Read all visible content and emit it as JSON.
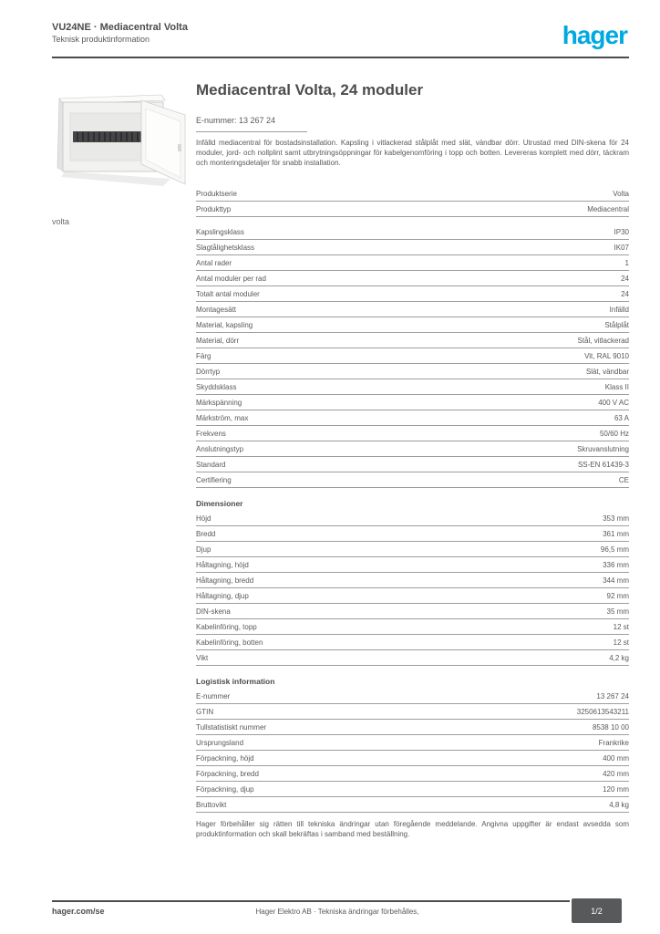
{
  "brand": {
    "logo_text": "hager",
    "logo_color": "#00A9E0"
  },
  "header": {
    "reference_line": "VU24NE · Mediacentral Volta",
    "subtitle_line": "Teknisk produktinformation"
  },
  "product_image": {
    "alt_name": "volta-media-enclosure-open-door-photo"
  },
  "side_label": "volta",
  "title": "Mediacentral Volta, 24 moduler",
  "enumber_line": "E-nummer: 13 267 24",
  "description": "Infälld mediacentral för bostadsinstallation. Kapsling i vitlackerad stålplåt med slät, vändbar dörr. Utrustad med DIN-skena för 24 moduler, jord- och nollplint samt utbrytningsöppningar för kabelgenomföring i topp och botten. Levereras komplett med dörr, täckram och monteringsdetaljer för snabb installation.",
  "table": {
    "sections": [
      {
        "title": "",
        "rows": [
          {
            "label": "Produktserie",
            "value": "Volta"
          },
          {
            "label": "Produkttyp",
            "value": "Mediacentral"
          }
        ]
      },
      {
        "title": "",
        "rows": [
          {
            "label": "Kapslingsklass",
            "value": "IP30"
          },
          {
            "label": "Slagtålighetsklass",
            "value": "IK07"
          },
          {
            "label": "Antal rader",
            "value": "1"
          },
          {
            "label": "Antal moduler per rad",
            "value": "24"
          },
          {
            "label": "Totalt antal moduler",
            "value": "24"
          },
          {
            "label": "Montagesätt",
            "value": "Infälld"
          },
          {
            "label": "Material, kapsling",
            "value": "Stålplåt"
          },
          {
            "label": "Material, dörr",
            "value": "Stål, vitlackerad"
          },
          {
            "label": "Färg",
            "value": "Vit, RAL 9010"
          },
          {
            "label": "Dörrtyp",
            "value": "Slät, vändbar"
          },
          {
            "label": "Skyddsklass",
            "value": "Klass II"
          },
          {
            "label": "Märkspänning",
            "value": "400 V AC"
          },
          {
            "label": "Märkström, max",
            "value": "63 A"
          },
          {
            "label": "Frekvens",
            "value": "50/60 Hz"
          },
          {
            "label": "Anslutningstyp",
            "value": "Skruvanslutning"
          },
          {
            "label": "Standard",
            "value": "SS-EN 61439-3"
          },
          {
            "label": "Certifiering",
            "value": "CE"
          }
        ]
      },
      {
        "title": "Dimensioner",
        "rows": [
          {
            "label": "Höjd",
            "value": "353 mm"
          },
          {
            "label": "Bredd",
            "value": "361 mm"
          },
          {
            "label": "Djup",
            "value": "96,5 mm"
          },
          {
            "label": "Håltagning, höjd",
            "value": "336 mm"
          },
          {
            "label": "Håltagning, bredd",
            "value": "344 mm"
          },
          {
            "label": "Håltagning, djup",
            "value": "92 mm"
          },
          {
            "label": "DIN-skena",
            "value": "35 mm"
          },
          {
            "label": "Kabelinföring, topp",
            "value": "12 st"
          },
          {
            "label": "Kabelinföring, botten",
            "value": "12 st"
          },
          {
            "label": "Vikt",
            "value": "4,2 kg"
          }
        ]
      },
      {
        "title": "Logistisk information",
        "rows": [
          {
            "label": "E-nummer",
            "value": "13 267 24"
          },
          {
            "label": "GTIN",
            "value": "3250613543211"
          },
          {
            "label": "Tullstatistiskt nummer",
            "value": "8538 10 00"
          },
          {
            "label": "Ursprungsland",
            "value": "Frankrike"
          },
          {
            "label": "Förpackning, höjd",
            "value": "400 mm"
          },
          {
            "label": "Förpackning, bredd",
            "value": "420 mm"
          },
          {
            "label": "Förpackning, djup",
            "value": "120 mm"
          },
          {
            "label": "Bruttovikt",
            "value": "4,8 kg"
          }
        ]
      }
    ]
  },
  "note": "Hager förbehåller sig rätten till tekniska ändringar utan föregående meddelande. Angivna uppgifter är endast avsedda som produktinformation och skall bekräftas i samband med beställning.",
  "footer": {
    "site": "hager.com/se",
    "center_text": "Hager Elektro AB · Tekniska ändringar förbehålles,",
    "page_badge": "1/2"
  }
}
